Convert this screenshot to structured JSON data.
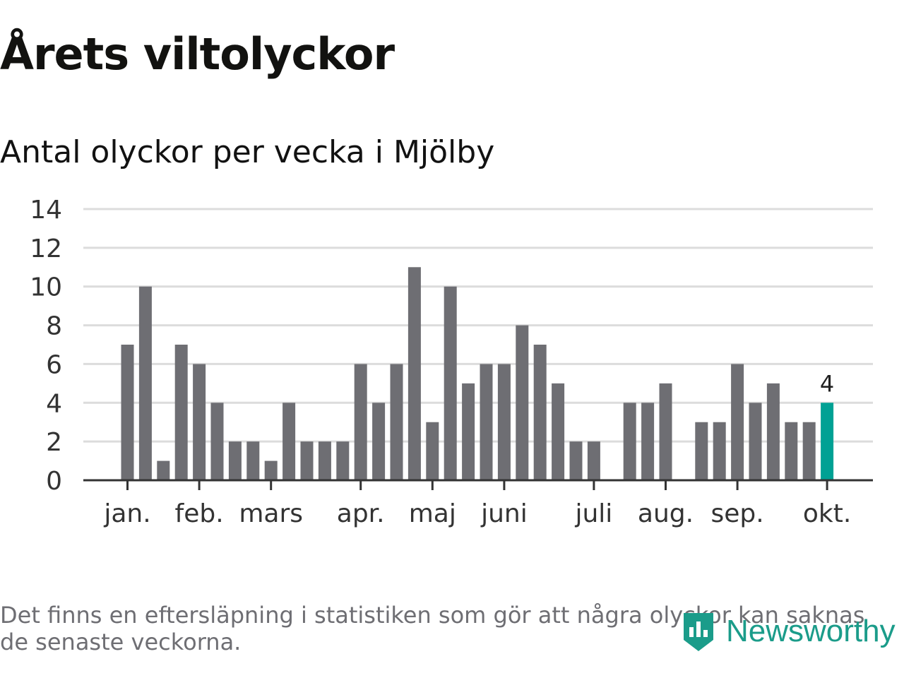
{
  "header": {
    "title": "Årets viltolyckor",
    "subtitle": "Antal olyckor per vecka i Mjölby"
  },
  "chart_data": {
    "type": "bar",
    "title": "Årets viltolyckor",
    "subtitle": "Antal olyckor per vecka i Mjölby",
    "xlabel": "",
    "ylabel": "",
    "ylim": [
      0,
      14
    ],
    "yticks": [
      0,
      2,
      4,
      6,
      8,
      10,
      12,
      14
    ],
    "grid": true,
    "values": [
      7,
      10,
      1,
      7,
      6,
      4,
      2,
      2,
      1,
      4,
      2,
      2,
      2,
      6,
      4,
      6,
      11,
      3,
      10,
      5,
      6,
      6,
      8,
      7,
      5,
      2,
      2,
      0,
      4,
      4,
      5,
      0,
      3,
      3,
      6,
      4,
      5,
      3,
      3,
      4
    ],
    "month_labels": [
      {
        "label": "jan.",
        "week_index": 0.5
      },
      {
        "label": "feb.",
        "week_index": 4.5
      },
      {
        "label": "mars",
        "week_index": 8.5
      },
      {
        "label": "apr.",
        "week_index": 13.5
      },
      {
        "label": "maj",
        "week_index": 17.5
      },
      {
        "label": "juni",
        "week_index": 21.5
      },
      {
        "label": "juli",
        "week_index": 26.5
      },
      {
        "label": "aug.",
        "week_index": 30.5
      },
      {
        "label": "sep.",
        "week_index": 34.5
      },
      {
        "label": "okt.",
        "week_index": 39.5
      }
    ],
    "highlight": {
      "index": 39,
      "label": "4"
    },
    "colors": {
      "bar": "#6e6e73",
      "highlight": "#00a194",
      "grid": "#dcdcdc",
      "axis": "#333333"
    }
  },
  "footer": {
    "note": "Det finns en eftersläpning i statistiken som gör att några olyckor kan saknas de senaste veckorna.",
    "brand": "Newsworthy",
    "brand_color": "#1b9c8a"
  }
}
